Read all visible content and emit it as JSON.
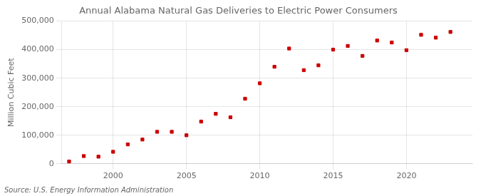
{
  "chart_data": {
    "type": "scatter",
    "title": "Annual Alabama Natural Gas Deliveries to Electric Power Consumers",
    "ylabel": "Million Cubic Feet",
    "annotation": "Source: U.S. Energy Information Administration",
    "x": [
      1997,
      1998,
      1999,
      2000,
      2001,
      2002,
      2003,
      2004,
      2005,
      2006,
      2007,
      2008,
      2009,
      2010,
      2011,
      2012,
      2013,
      2014,
      2015,
      2016,
      2017,
      2018,
      2019,
      2020,
      2021,
      2022,
      2023
    ],
    "values": [
      8000,
      27000,
      25000,
      42000,
      68000,
      85000,
      112000,
      112000,
      100000,
      148000,
      175000,
      163000,
      228000,
      282000,
      340000,
      404000,
      328000,
      345000,
      400000,
      413000,
      378000,
      432000,
      425000,
      398000,
      452000,
      442000,
      462000
    ],
    "color": "#cc0000",
    "marker": "square",
    "xlim": [
      1996.5,
      2024.5
    ],
    "xticks": [
      2000,
      2005,
      2010,
      2015,
      2020
    ],
    "ylim": [
      0,
      500000
    ],
    "yticks": [
      0,
      {
        "value": 100000,
        "label": "100,000"
      },
      {
        "value": 200000,
        "label": "200,000"
      },
      {
        "value": 300000,
        "label": "300,000"
      },
      {
        "value": 400000,
        "label": "400,000"
      },
      {
        "value": 500000,
        "label": "500,000"
      }
    ],
    "grid": true
  }
}
